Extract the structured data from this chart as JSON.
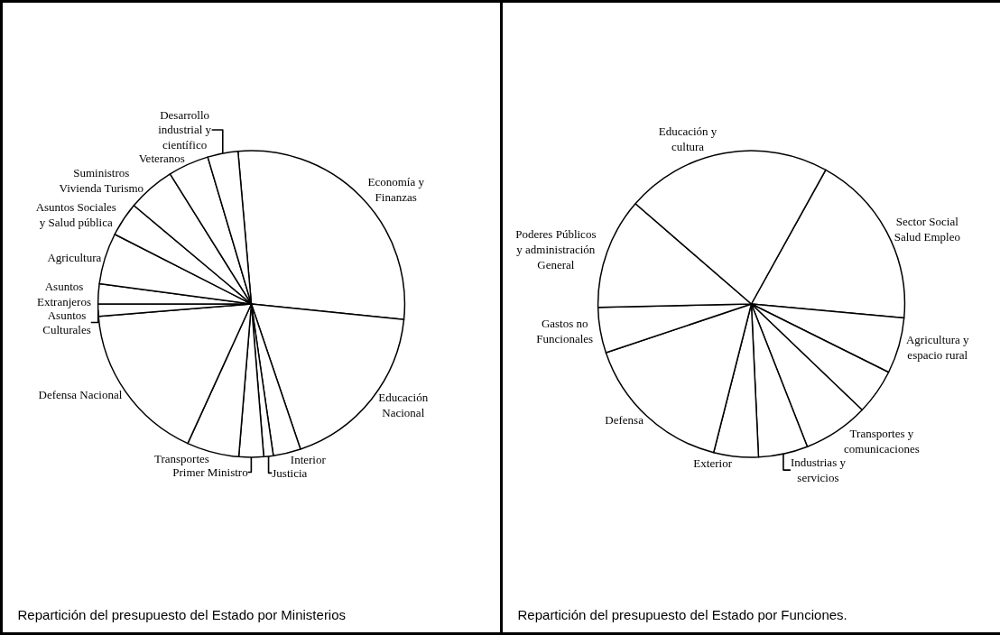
{
  "chart_data": [
    {
      "type": "pie",
      "title": "Repartición del presupuesto del Estado por Ministerios",
      "categories": [
        "Economía y Finanzas",
        "Educación Nacional",
        "Interior",
        "Justicia",
        "Primer Ministro",
        "Transportes",
        "Defensa Nacional",
        "Asuntos Culturales",
        "Asuntos Extranjeros",
        "Agricultura",
        "Asuntos Sociales y Salud pública",
        "Suministros Vivienda Turismo",
        "Veteranos",
        "Desarrollo industrial y científico"
      ],
      "values": [
        28.0,
        18.2,
        2.9,
        1.0,
        2.6,
        5.5,
        16.9,
        1.3,
        2.1,
        5.4,
        3.6,
        5.0,
        4.3,
        3.2
      ],
      "colors": [
        "#ffffff",
        "#ffffff",
        "#ffffff",
        "#ffffff",
        "#ffffff",
        "#ffffff",
        "#ffffff",
        "#ffffff",
        "#ffffff",
        "#ffffff",
        "#ffffff",
        "#ffffff",
        "#ffffff",
        "#ffffff"
      ],
      "legend": false
    },
    {
      "type": "pie",
      "title": "Repartición del presupuesto del Estado por Funciones.",
      "categories": [
        "Sector Social Salud Empleo",
        "Agricultura y espacio rural",
        null,
        "Transportes y comunicaciones",
        "Industrias y servicios",
        "Exterior",
        "Defensa",
        "Gastos no Funcionales",
        "Poderes Públicos y administración General",
        "Educación y cultura"
      ],
      "values": [
        18.4,
        5.9,
        4.8,
        6.9,
        5.2,
        4.7,
        15.9,
        4.8,
        11.7,
        21.7
      ],
      "colors": [
        "#ffffff",
        "#ffffff",
        "#ffffff",
        "#ffffff",
        "#ffffff",
        "#ffffff",
        "#ffffff",
        "#ffffff",
        "#ffffff",
        "#ffffff"
      ],
      "legend": false
    }
  ]
}
